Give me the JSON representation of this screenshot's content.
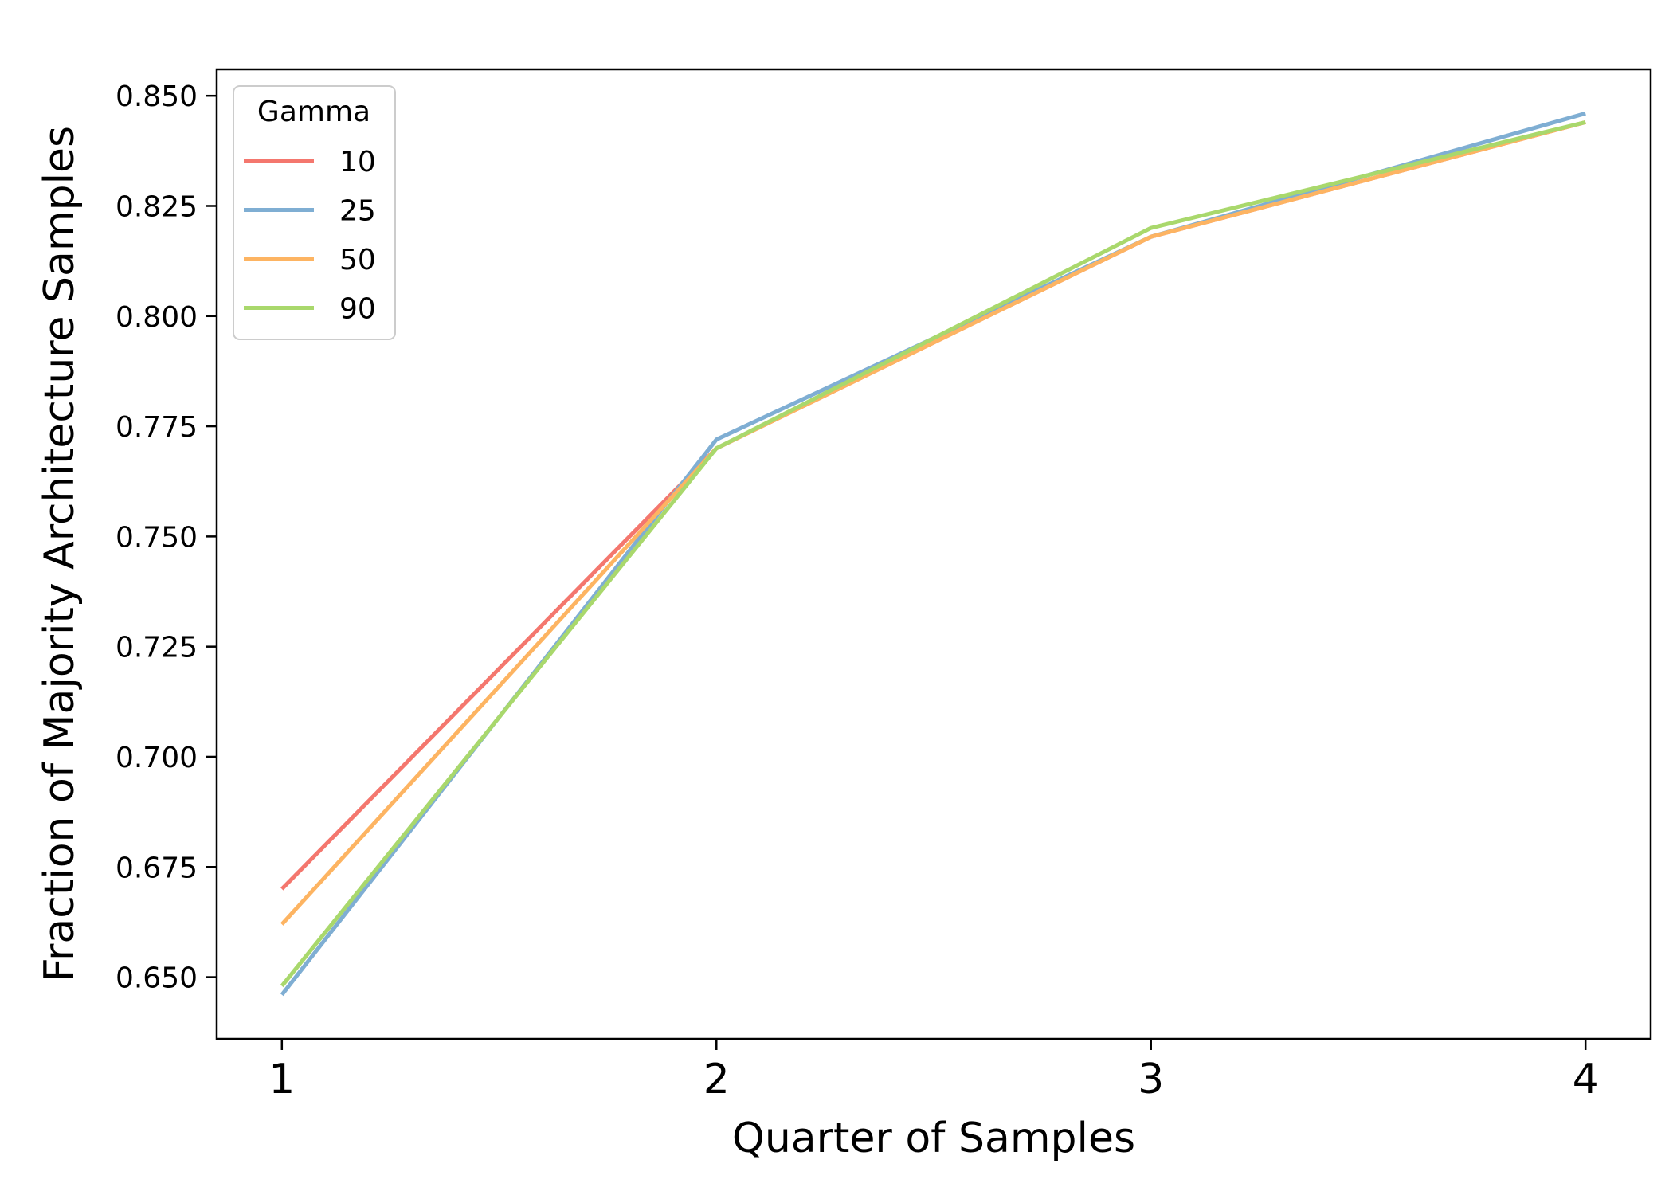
{
  "chart_data": {
    "type": "line",
    "xlabel": "Quarter of Samples",
    "ylabel": "Fraction of Majority Architecture Samples",
    "x": [
      1,
      2,
      3,
      4
    ],
    "xticks": [
      "1",
      "2",
      "3",
      "4"
    ],
    "yticks": [
      "0.650",
      "0.675",
      "0.700",
      "0.725",
      "0.750",
      "0.775",
      "0.800",
      "0.825",
      "0.850"
    ],
    "xlim": [
      0.85,
      4.15
    ],
    "ylim": [
      0.636,
      0.856
    ],
    "grid": false,
    "legend": {
      "title": "Gamma",
      "placement": "top-left"
    },
    "series": [
      {
        "name": "10",
        "color": "#F4776E",
        "values": [
          0.67,
          0.77,
          0.818,
          0.844
        ]
      },
      {
        "name": "25",
        "color": "#7FAED3",
        "values": [
          0.646,
          0.772,
          0.818,
          0.846
        ]
      },
      {
        "name": "50",
        "color": "#FDB462",
        "values": [
          0.662,
          0.77,
          0.818,
          0.844
        ]
      },
      {
        "name": "90",
        "color": "#A9D86C",
        "values": [
          0.648,
          0.77,
          0.82,
          0.844
        ]
      }
    ]
  }
}
